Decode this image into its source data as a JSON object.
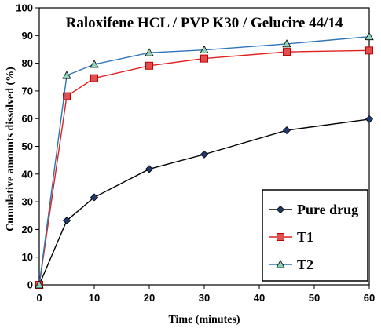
{
  "chart_data": {
    "type": "line",
    "title": "Raloxifene HCL / PVP K30 / Gelucire 44/14",
    "xlabel": "Time (minutes)",
    "ylabel": "Cumulative amounts dissolved (%)",
    "xlim": [
      0,
      60
    ],
    "ylim": [
      0,
      100
    ],
    "xticks": [
      0,
      10,
      20,
      30,
      40,
      50,
      60
    ],
    "yticks": [
      0,
      10,
      20,
      30,
      40,
      50,
      60,
      70,
      80,
      90,
      100
    ],
    "grid": false,
    "legend_position": "bottom-right",
    "x": [
      0,
      5,
      10,
      20,
      30,
      45,
      60
    ],
    "series": [
      {
        "name": "Pure drug",
        "marker": "diamond",
        "color": "#000000",
        "marker_color": "#1f3a6e",
        "values": [
          0,
          23.2,
          31.6,
          41.8,
          47.1,
          55.8,
          59.8
        ]
      },
      {
        "name": "T1",
        "marker": "square",
        "color": "#e02020",
        "marker_color": "#e05050",
        "values": [
          0,
          68.1,
          74.6,
          79.1,
          81.7,
          84.1,
          84.6
        ]
      },
      {
        "name": "T2",
        "marker": "triangle",
        "color": "#2e75b6",
        "marker_color": "#8fd4b8",
        "values": [
          0,
          75.6,
          79.6,
          83.8,
          84.8,
          87.0,
          89.6
        ]
      }
    ]
  }
}
